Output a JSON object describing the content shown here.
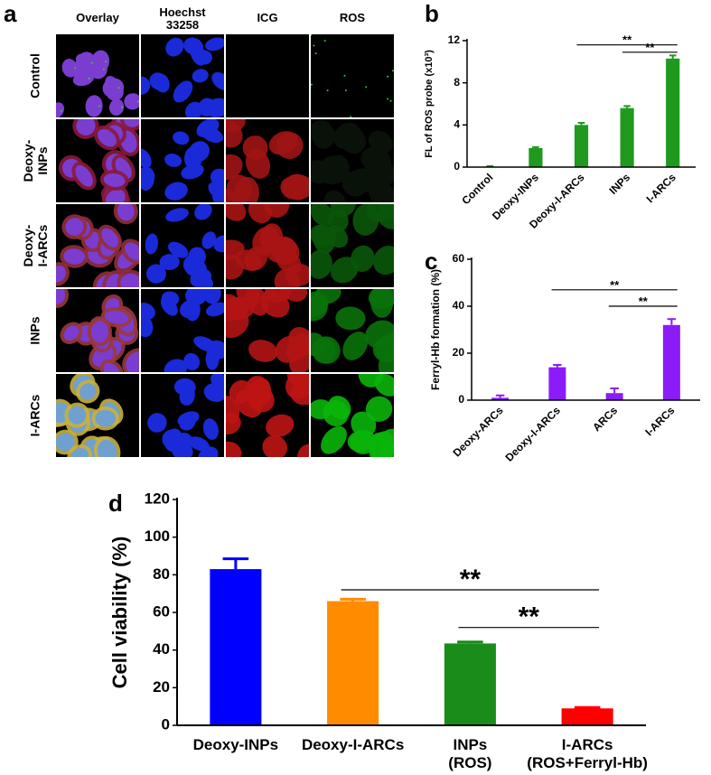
{
  "panel_a": {
    "label": "a",
    "columns": [
      "Overlay",
      [
        "Hoechst",
        "33258"
      ],
      "ICG",
      "ROS"
    ],
    "rows": [
      "Control",
      [
        "Deoxy-",
        "INPs"
      ],
      [
        "Deoxy-",
        "I-ARCs"
      ],
      "INPs",
      "I-ARCs"
    ]
  },
  "chart_data": [
    {
      "type": "bar",
      "panel_label": "b",
      "y_label": "FL of ROS probe (x10³)",
      "categories": [
        "Control",
        "Deoxy-INPs",
        "Deoxy-I-ARCs",
        "INPs",
        "I-ARCs"
      ],
      "values": [
        0.05,
        1.8,
        4.0,
        5.6,
        10.3
      ],
      "errors": [
        0.05,
        0.1,
        0.2,
        0.2,
        0.3
      ],
      "color": "#1f9a1f",
      "ylim": [
        0,
        12
      ],
      "yticks": [
        0,
        4,
        8,
        12
      ],
      "annotations": [
        {
          "text": "**",
          "from": "Deoxy-I-ARCs",
          "to": "I-ARCs",
          "y": 11.6
        },
        {
          "text": "**",
          "from": "INPs",
          "to": "I-ARCs",
          "y": 10.9
        }
      ]
    },
    {
      "type": "bar",
      "panel_label": "c",
      "y_label": "Ferryl-Hb formation (%)",
      "categories": [
        "Deoxy-ARCs",
        "Deoxy-I-ARCs",
        "ARCs",
        "I-ARCs"
      ],
      "values": [
        1,
        14,
        3,
        32
      ],
      "errors": [
        1,
        1,
        2,
        2.5
      ],
      "color": "#8b1cf7",
      "ylim": [
        0,
        60
      ],
      "yticks": [
        0,
        20,
        40,
        60
      ],
      "annotations": [
        {
          "text": "**",
          "from": "Deoxy-I-ARCs",
          "to": "I-ARCs",
          "y": 47
        },
        {
          "text": "**",
          "from": "ARCs",
          "to": "I-ARCs",
          "y": 40
        }
      ]
    },
    {
      "type": "bar",
      "panel_label": "d",
      "y_label": "Cell viability (%)",
      "categories": [
        [
          "Deoxy-INPs"
        ],
        [
          "Deoxy-I-ARCs"
        ],
        [
          "INPs",
          "(ROS)"
        ],
        [
          "I-ARCs",
          "(ROS+Ferryl-Hb)"
        ]
      ],
      "values": [
        83,
        66,
        43.5,
        9
      ],
      "errors": [
        5.5,
        1,
        0.8,
        0.5
      ],
      "colors": [
        "#0000ff",
        "#ff8c00",
        "#1a8c1a",
        "#ff0000"
      ],
      "ylim": [
        0,
        120
      ],
      "yticks": [
        0,
        20,
        40,
        60,
        80,
        100,
        120
      ],
      "annotations": [
        {
          "text": "**",
          "from": [
            "Deoxy-I-ARCs"
          ],
          "to": [
            "I-ARCs",
            "(ROS+Ferryl-Hb)"
          ],
          "y": 72
        },
        {
          "text": "**",
          "from": [
            "INPs",
            "(ROS)"
          ],
          "to": [
            "I-ARCs",
            "(ROS+Ferryl-Hb)"
          ],
          "y": 52
        }
      ]
    }
  ]
}
